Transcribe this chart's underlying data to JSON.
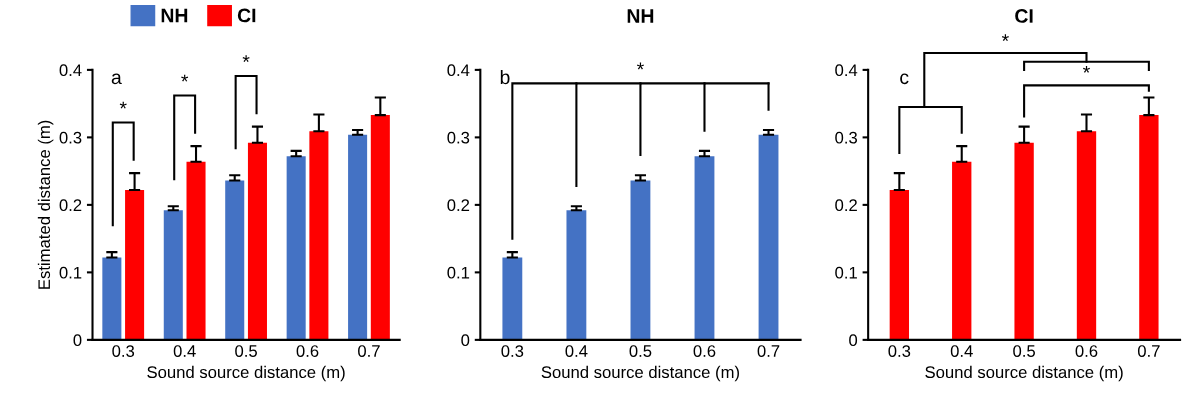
{
  "chart_data": [
    {
      "type": "bar",
      "categories": [
        "0.3",
        "0.4",
        "0.5",
        "0.6",
        "0.7"
      ],
      "xlabel": "Sound source distance (m)",
      "ylabel": "Estimated distance (m)",
      "ylim": [
        0,
        0.4
      ],
      "yticks": [
        0,
        0.1,
        0.2,
        0.3,
        0.4
      ],
      "legend": "top",
      "grid": false,
      "series": [
        {
          "name": "NH",
          "color": "#4472c4",
          "values": [
            0.122,
            0.192,
            0.236,
            0.272,
            0.304
          ],
          "errors": [
            [
              0.122,
              0.13
            ],
            [
              0.192,
              0.198
            ],
            [
              0.236,
              0.244
            ],
            [
              0.272,
              0.28
            ],
            [
              0.304,
              0.311
            ]
          ]
        },
        {
          "name": "CI",
          "color": "#ff0000",
          "values": [
            0.222,
            0.264,
            0.292,
            0.309,
            0.333
          ],
          "errors": [
            [
              0.222,
              0.247
            ],
            [
              0.264,
              0.287
            ],
            [
              0.292,
              0.316
            ],
            [
              0.309,
              0.334
            ],
            [
              0.333,
              0.359
            ]
          ]
        }
      ],
      "annotations": [
        "a",
        "*",
        "*",
        "*"
      ]
    },
    {
      "type": "bar",
      "title": "NH",
      "categories": [
        "0.3",
        "0.4",
        "0.5",
        "0.6",
        "0.7"
      ],
      "xlabel": "Sound source distance (m)",
      "ylim": [
        0,
        0.4
      ],
      "yticks": [
        0,
        0.1,
        0.2,
        0.3,
        0.4
      ],
      "grid": false,
      "series": [
        {
          "color": "#4472c4",
          "values": [
            0.122,
            0.192,
            0.236,
            0.272,
            0.304
          ],
          "errors": [
            [
              0.122,
              0.13
            ],
            [
              0.192,
              0.198
            ],
            [
              0.236,
              0.244
            ],
            [
              0.272,
              0.28
            ],
            [
              0.304,
              0.311
            ]
          ]
        }
      ],
      "annotations": [
        "b",
        "*"
      ]
    },
    {
      "type": "bar",
      "title": "CI",
      "categories": [
        "0.3",
        "0.4",
        "0.5",
        "0.6",
        "0.7"
      ],
      "xlabel": "Sound source distance (m)",
      "ylim": [
        0,
        0.4
      ],
      "yticks": [
        0,
        0.1,
        0.2,
        0.3,
        0.4
      ],
      "grid": false,
      "series": [
        {
          "color": "#ff0000",
          "values": [
            0.222,
            0.264,
            0.292,
            0.309,
            0.333
          ],
          "errors": [
            [
              0.222,
              0.247
            ],
            [
              0.264,
              0.287
            ],
            [
              0.292,
              0.316
            ],
            [
              0.309,
              0.334
            ],
            [
              0.333,
              0.359
            ]
          ]
        }
      ],
      "annotations": [
        "c",
        "*",
        "*"
      ]
    }
  ]
}
